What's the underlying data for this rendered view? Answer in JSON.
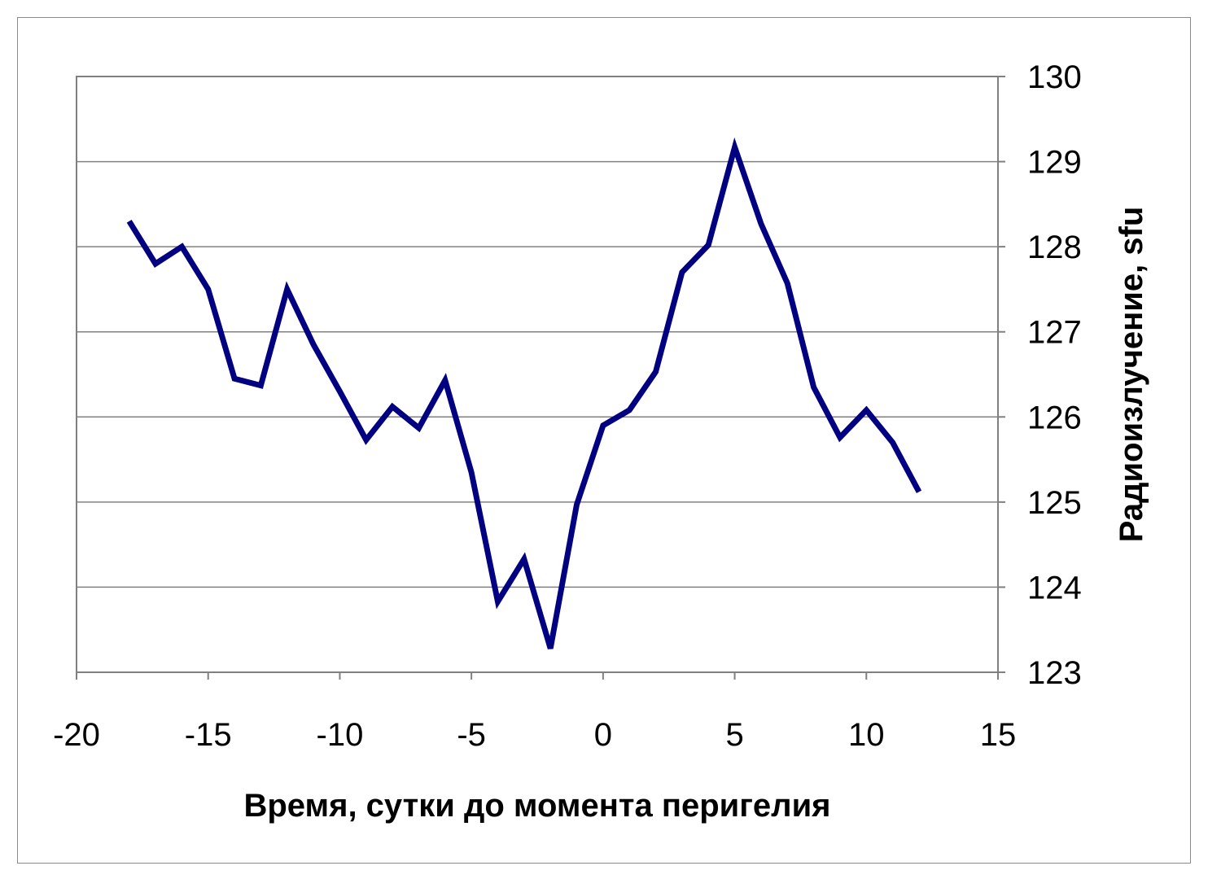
{
  "chart_data": {
    "type": "line",
    "xlabel": "Время, сутки до момента перигелия",
    "ylabel": "Радиоизлучение, sfu",
    "xlim": [
      -20,
      15
    ],
    "ylim": [
      123,
      130
    ],
    "x_ticks": [
      "-20",
      "-15",
      "-10",
      "-5",
      "0",
      "5",
      "10",
      "15"
    ],
    "y_ticks": [
      "123",
      "124",
      "125",
      "126",
      "127",
      "128",
      "129",
      "130"
    ],
    "y_axis_side": "right",
    "grid": "horizontal",
    "legend": "none",
    "series": [
      {
        "color": "#000080",
        "x": [
          -18,
          -17,
          -16,
          -15,
          -14,
          -13,
          -12,
          -11,
          -10,
          -9,
          -8,
          -7,
          -6,
          -5,
          -4,
          -3,
          -2,
          -1,
          0,
          1,
          2,
          3,
          4,
          5,
          6,
          7,
          8,
          9,
          10,
          11,
          12
        ],
        "y": [
          128.3,
          127.8,
          128.0,
          127.5,
          126.45,
          126.37,
          127.5,
          126.85,
          126.3,
          125.73,
          126.12,
          125.87,
          126.43,
          125.35,
          123.83,
          124.33,
          123.28,
          124.97,
          125.9,
          126.08,
          126.53,
          127.7,
          128.02,
          129.17,
          128.27,
          127.57,
          126.35,
          125.76,
          126.08,
          125.7,
          125.12
        ]
      }
    ]
  }
}
